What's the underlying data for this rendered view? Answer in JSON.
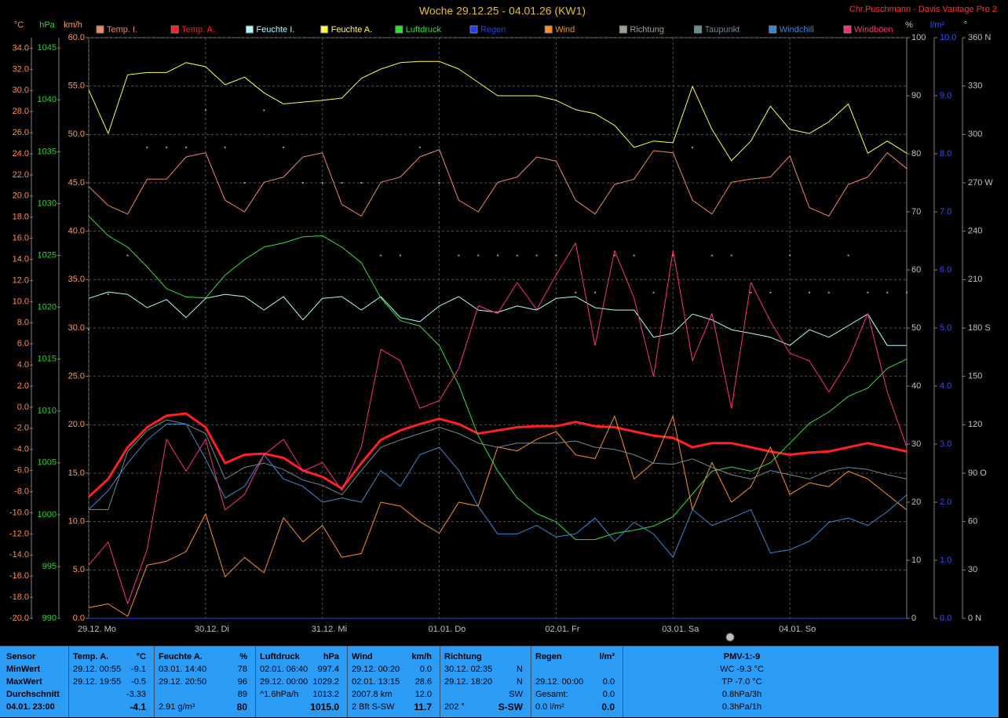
{
  "chart_data": {
    "type": "line",
    "title": "Woche 29.12.25 - 04.01.26 (KW1)",
    "credit": "Chr.Puschmann - Davis Vantage Pro 2",
    "grid": true,
    "grid_axis": "km/h",
    "xlim": [
      0,
      168
    ],
    "xticks": [
      {
        "value": 0,
        "label": "29.12. Mo"
      },
      {
        "value": 24,
        "label": "30.12. Di"
      },
      {
        "value": 48,
        "label": "31.12. Mi"
      },
      {
        "value": 72,
        "label": "01.01. Do"
      },
      {
        "value": 96,
        "label": "02.01. Fr"
      },
      {
        "value": 120,
        "label": "03.01. Sa"
      },
      {
        "value": 144,
        "label": "04.01. So"
      }
    ],
    "axes": [
      {
        "unit": "°C",
        "color": "#ff8c40",
        "lim": [
          -20,
          35
        ],
        "ticks": [
          {
            "value": -20,
            "label": "-20.0"
          },
          {
            "value": -18,
            "label": "-18.0"
          },
          {
            "value": -16,
            "label": "-16.0"
          },
          {
            "value": -14,
            "label": "-14.0"
          },
          {
            "value": -12,
            "label": "-12.0"
          },
          {
            "value": -10,
            "label": "-10.0"
          },
          {
            "value": -8,
            "label": "-8.0"
          },
          {
            "value": -6,
            "label": "-6.0"
          },
          {
            "value": -4,
            "label": "-4.0"
          },
          {
            "value": -2,
            "label": "-2.0"
          },
          {
            "value": 0,
            "label": "0.0"
          },
          {
            "value": 2,
            "label": "2.0"
          },
          {
            "value": 4,
            "label": "4.0"
          },
          {
            "value": 6,
            "label": "6.0"
          },
          {
            "value": 8,
            "label": "8.0"
          },
          {
            "value": 10,
            "label": "10.0"
          },
          {
            "value": 12,
            "label": "12.0"
          },
          {
            "value": 14,
            "label": "14.0"
          },
          {
            "value": 16,
            "label": "16.0"
          },
          {
            "value": 18,
            "label": "18.0"
          },
          {
            "value": 20,
            "label": "20.0"
          },
          {
            "value": 22,
            "label": "22.0"
          },
          {
            "value": 24,
            "label": "24.0"
          },
          {
            "value": 26,
            "label": "26.0"
          },
          {
            "value": 28,
            "label": "28.0"
          },
          {
            "value": 30,
            "label": "30.0"
          },
          {
            "value": 32,
            "label": "32.0"
          },
          {
            "value": 34,
            "label": "34.0"
          }
        ]
      },
      {
        "unit": "hPa",
        "color": "#30d030",
        "lim": [
          990,
          1046
        ],
        "ticks": [
          990,
          995,
          1000,
          1005,
          1010,
          1015,
          1020,
          1025,
          1030,
          1035,
          1040,
          1045
        ]
      },
      {
        "unit": "km/h",
        "color": "#ff9c50",
        "lim": [
          0,
          60
        ],
        "ticks": [
          {
            "value": 0,
            "label": "0.0"
          },
          {
            "value": 5,
            "label": "5.0"
          },
          {
            "value": 10,
            "label": "10.0"
          },
          {
            "value": 15,
            "label": "15.0"
          },
          {
            "value": 20,
            "label": "20.0"
          },
          {
            "value": 25,
            "label": "25.0"
          },
          {
            "value": 30,
            "label": "30.0"
          },
          {
            "value": 35,
            "label": "35.0"
          },
          {
            "value": 40,
            "label": "40.0"
          },
          {
            "value": 45,
            "label": "45.0"
          },
          {
            "value": 50,
            "label": "50.0"
          },
          {
            "value": 55,
            "label": "55.0"
          },
          {
            "value": 60,
            "label": "60.0"
          }
        ]
      },
      {
        "unit": "%",
        "color": "#c0c0c0",
        "lim": [
          0,
          100
        ],
        "ticks": [
          0,
          10,
          20,
          30,
          40,
          50,
          60,
          70,
          80,
          90,
          100
        ]
      },
      {
        "unit": "l/m²",
        "color": "#3050ff",
        "lim": [
          0,
          10
        ],
        "ticks": [
          {
            "value": 0,
            "label": "0.0"
          },
          {
            "value": 1,
            "label": "1.0"
          },
          {
            "value": 2,
            "label": "2.0"
          },
          {
            "value": 3,
            "label": "3.0"
          },
          {
            "value": 4,
            "label": "4.0"
          },
          {
            "value": 5,
            "label": "5.0"
          },
          {
            "value": 6,
            "label": "6.0"
          },
          {
            "value": 7,
            "label": "7.0"
          },
          {
            "value": 8,
            "label": "8.0"
          },
          {
            "value": 9,
            "label": "9.0"
          },
          {
            "value": 10,
            "label": "10.0"
          }
        ]
      },
      {
        "unit": "°",
        "color": "#c0c0c0",
        "lim": [
          0,
          360
        ],
        "ticks": [
          {
            "value": 0,
            "label": "0 N"
          },
          30,
          60,
          {
            "value": 90,
            "label": "90 O"
          },
          120,
          150,
          {
            "value": 180,
            "label": "180 S"
          },
          210,
          240,
          {
            "value": 270,
            "label": "270 W"
          },
          300,
          330,
          {
            "value": 360,
            "label": "360 N"
          }
        ]
      }
    ],
    "x": [
      0,
      4,
      8,
      12,
      16,
      20,
      24,
      28,
      32,
      36,
      40,
      44,
      48,
      52,
      56,
      60,
      64,
      68,
      72,
      76,
      80,
      84,
      88,
      92,
      96,
      100,
      104,
      108,
      112,
      116,
      120,
      124,
      128,
      132,
      136,
      140,
      144,
      148,
      152,
      156,
      160,
      164,
      168
    ],
    "series": [
      {
        "name": "Temp. I.",
        "color": "#f08860",
        "axis": "°C",
        "line_width": 1,
        "values": [
          20.9,
          19.1,
          18.3,
          21.6,
          21.6,
          23.7,
          24.1,
          19.6,
          18.5,
          21.3,
          21.8,
          23.7,
          24.1,
          19.2,
          18.1,
          21.3,
          21.8,
          23.7,
          24.4,
          19.6,
          18.5,
          21.3,
          21.8,
          23.7,
          23.3,
          19.6,
          18.3,
          21.1,
          21.6,
          24.3,
          24.1,
          19.6,
          18.3,
          21.3,
          21.6,
          21.8,
          23.8,
          18.9,
          18.1,
          21.1,
          21.8,
          24.1,
          22.6
        ]
      },
      {
        "name": "Temp. A.",
        "color": "#ff2020",
        "axis": "°C",
        "line_width": 3,
        "values": [
          -8.5,
          -6.8,
          -3.8,
          -1.9,
          -0.8,
          -0.6,
          -1.9,
          -5.3,
          -4.5,
          -4.4,
          -4.8,
          -6.0,
          -6.6,
          -7.7,
          -5.3,
          -3.1,
          -2.2,
          -1.6,
          -1.1,
          -1.6,
          -2.5,
          -2.2,
          -1.9,
          -1.8,
          -1.8,
          -1.4,
          -1.8,
          -1.9,
          -2.3,
          -2.7,
          -2.9,
          -3.8,
          -3.4,
          -3.4,
          -3.8,
          -4.2,
          -4.5,
          -4.3,
          -4.2,
          -3.8,
          -3.4,
          -3.8,
          -4.2
        ]
      },
      {
        "name": "Feuchte I.",
        "color": "#a8ffff",
        "axis": "%",
        "line_width": 1,
        "values": [
          55.1,
          56.2,
          55.8,
          53.5,
          54.9,
          51.8,
          55.1,
          55.8,
          55.4,
          53.1,
          55.4,
          51.4,
          55.1,
          55.4,
          53.1,
          55.4,
          51.8,
          51.1,
          53.8,
          55.4,
          53.1,
          52.7,
          53.8,
          53.1,
          55.1,
          55.4,
          53.5,
          53.1,
          53.1,
          48.4,
          49.1,
          52.4,
          51.4,
          49.7,
          49.1,
          48.4,
          47.0,
          49.7,
          48.4,
          50.4,
          52.4,
          47.0,
          47.0
        ]
      },
      {
        "name": "Feuchte A.",
        "color": "#ffff40",
        "axis": "%",
        "line_width": 1,
        "values": [
          91,
          83.5,
          93.6,
          94,
          94,
          95.7,
          95,
          91.9,
          93.2,
          90.5,
          88.6,
          88.9,
          89.2,
          89.6,
          93,
          94.6,
          95.7,
          95.9,
          95.9,
          94.6,
          92.3,
          90,
          90,
          90,
          89.2,
          87.6,
          86.9,
          84.9,
          81.1,
          82.2,
          81.9,
          91.6,
          84.2,
          78.8,
          82.2,
          88.2,
          84.2,
          83.5,
          85.5,
          88.6,
          80.1,
          82.2,
          80.1
        ]
      },
      {
        "name": "Luftdruck",
        "color": "#30e030",
        "axis": "hPa",
        "line_width": 1,
        "values": [
          1028.8,
          1026.9,
          1025.8,
          1023.9,
          1021.8,
          1021.0,
          1020.9,
          1023.1,
          1024.6,
          1025.8,
          1026.2,
          1026.8,
          1026.9,
          1025.8,
          1024.3,
          1020.9,
          1018.7,
          1018.2,
          1016.3,
          1012.5,
          1007.6,
          1004.2,
          1001.6,
          1000.1,
          999.3,
          997.6,
          997.6,
          998.2,
          998.5,
          998.9,
          999.8,
          1002.0,
          1004.2,
          1004.6,
          1004.2,
          1005.0,
          1006.9,
          1008.8,
          1009.9,
          1011.4,
          1012.2,
          1014.1,
          1015.0
        ]
      },
      {
        "name": "Regen",
        "color": "#2040ff",
        "axis": "l/m²",
        "line_width": 1,
        "values": [
          0,
          0,
          0,
          0,
          0,
          0,
          0,
          0,
          0,
          0,
          0,
          0,
          0,
          0,
          0,
          0,
          0,
          0,
          0,
          0,
          0,
          0,
          0,
          0,
          0,
          0,
          0,
          0,
          0,
          0,
          0,
          0,
          0,
          0,
          0,
          0,
          0,
          0,
          0,
          0,
          0,
          0,
          0
        ]
      },
      {
        "name": "Wind",
        "color": "#ff9020",
        "axis": "km/h",
        "line_width": 1,
        "values": [
          1.1,
          1.5,
          0.2,
          5.5,
          5.9,
          6.9,
          10.8,
          4.3,
          6.3,
          4.7,
          10.4,
          7.9,
          9.6,
          6.3,
          6.7,
          12.0,
          11.6,
          10.0,
          8.8,
          12.0,
          11.6,
          17.7,
          17.3,
          18.5,
          19.3,
          16.9,
          16.5,
          20.9,
          14.4,
          16.1,
          20.9,
          11.2,
          16.1,
          12.0,
          13.6,
          17.7,
          12.8,
          14.0,
          13.6,
          15.2,
          14.4,
          12.8,
          11.2
        ]
      },
      {
        "name": "Richtung",
        "color": "#a0a090",
        "axis": "°",
        "marker": "dots",
        "values": [
          179,
          201,
          225,
          292,
          292,
          292,
          315,
          292,
          270,
          315,
          292,
          270,
          270,
          270,
          270,
          225,
          225,
          292,
          270,
          225,
          225,
          225,
          225,
          225,
          225,
          202,
          202,
          225,
          225,
          202,
          225,
          292,
          225,
          225,
          202,
          202,
          225,
          202,
          202,
          225,
          202,
          202,
          202
        ]
      },
      {
        "name": "Taupunkt",
        "color": "#6c8c90",
        "axis": "°C",
        "line_width": 1,
        "values": [
          -9.7,
          -9.7,
          -4.2,
          -2.2,
          -1.2,
          -1.6,
          -2.5,
          -6.8,
          -5.7,
          -5.3,
          -5.9,
          -6.9,
          -7.4,
          -8.3,
          -6.0,
          -3.8,
          -3.1,
          -2.5,
          -1.9,
          -2.5,
          -3.4,
          -3.8,
          -3.4,
          -3.4,
          -3.4,
          -3.2,
          -3.8,
          -4.0,
          -4.5,
          -5.3,
          -5.4,
          -4.9,
          -5.7,
          -6.4,
          -6.8,
          -6.0,
          -6.4,
          -6.8,
          -6.0,
          -5.7,
          -5.9,
          -6.4,
          -6.8
        ]
      },
      {
        "name": "Windchill",
        "color": "#3a8ad0",
        "axis": "°C",
        "line_width": 1,
        "values": [
          -9.7,
          -7.9,
          -5.3,
          -3.1,
          -1.6,
          -1.6,
          -4.9,
          -8.6,
          -7.5,
          -4.5,
          -6.8,
          -7.5,
          -9.0,
          -8.6,
          -9.0,
          -6.0,
          -7.5,
          -4.5,
          -3.8,
          -6.0,
          -9.4,
          -12.0,
          -12.0,
          -11.2,
          -12.3,
          -12.0,
          -10.5,
          -12.7,
          -10.9,
          -12.0,
          -14.2,
          -9.7,
          -11.2,
          -10.5,
          -9.7,
          -13.8,
          -13.5,
          -12.7,
          -10.9,
          -10.5,
          -11.2,
          -9.9,
          -8.3
        ]
      },
      {
        "name": "Windböen",
        "color": "#ff3080",
        "axis": "km/h",
        "line_width": 1,
        "values": [
          5.5,
          7.9,
          1.5,
          7.1,
          18.5,
          15.2,
          18.5,
          11.2,
          12.8,
          16.9,
          18.5,
          15.2,
          16.1,
          13.2,
          17.7,
          27.8,
          26.6,
          21.7,
          22.5,
          25.8,
          32.3,
          31.5,
          34.7,
          31.9,
          35.5,
          38.8,
          28.2,
          38.0,
          33.1,
          25.0,
          38.0,
          26.6,
          31.5,
          21.7,
          34.7,
          30.7,
          27.4,
          26.6,
          23.4,
          26.6,
          31.5,
          23.4,
          17.7
        ]
      }
    ]
  },
  "stats": {
    "row_header": "Sensor",
    "row_labels": [
      "MinWert",
      "MaxWert",
      "Durchschnitt",
      "04.01. 23:00"
    ],
    "groups": [
      {
        "title": "Temp. A.",
        "unit": "°C",
        "cells": [
          [
            "29.12. 00:55",
            "-9.1"
          ],
          [
            "29.12. 19:55",
            "-0.5"
          ],
          [
            null,
            "-3.33"
          ],
          [
            null,
            "-4.1"
          ]
        ]
      },
      {
        "title": "Feuchte A.",
        "unit": "%",
        "cells": [
          [
            "03.01. 14:40",
            "78"
          ],
          [
            "29.12. 20:50",
            "96"
          ],
          [
            null,
            "89"
          ],
          [
            "2.91 g/m³",
            "80"
          ]
        ]
      },
      {
        "title": "Luftdruck",
        "unit": "hPa",
        "cells": [
          [
            "02.01. 06:40",
            "997.4"
          ],
          [
            "29.12. 00:00",
            "1029.2"
          ],
          [
            "^1.6hPa/h",
            "1013.2"
          ],
          [
            null,
            "1015.0"
          ]
        ]
      },
      {
        "title": "Wind",
        "unit": "km/h",
        "cells": [
          [
            "29.12. 00:20",
            "0.0"
          ],
          [
            "02.01. 13:15",
            "28.6"
          ],
          [
            "2007.8 km",
            "12.0"
          ],
          [
            "2 Bft S-SW",
            "11.7"
          ]
        ]
      },
      {
        "title": "Richtung",
        "unit": null,
        "cells": [
          [
            "30.12. 02:35",
            "N"
          ],
          [
            "29.12. 18:20",
            "N"
          ],
          [
            null,
            "SW"
          ],
          [
            "202 °",
            "S-SW"
          ]
        ]
      },
      {
        "title": "Regen",
        "unit": "l/m²",
        "cells": [
          [
            null,
            null
          ],
          [
            "29.12. 00:00",
            "0.0"
          ],
          [
            "Gesamt:",
            "0.0"
          ],
          [
            "0.0 l/m²",
            "0.0"
          ]
        ]
      }
    ],
    "pmv": [
      "PMV-1:-9",
      "WC -9.3 °C",
      "TP -7.0 °C",
      "0.8hPa/3h",
      "0.3hPa/1h"
    ]
  }
}
